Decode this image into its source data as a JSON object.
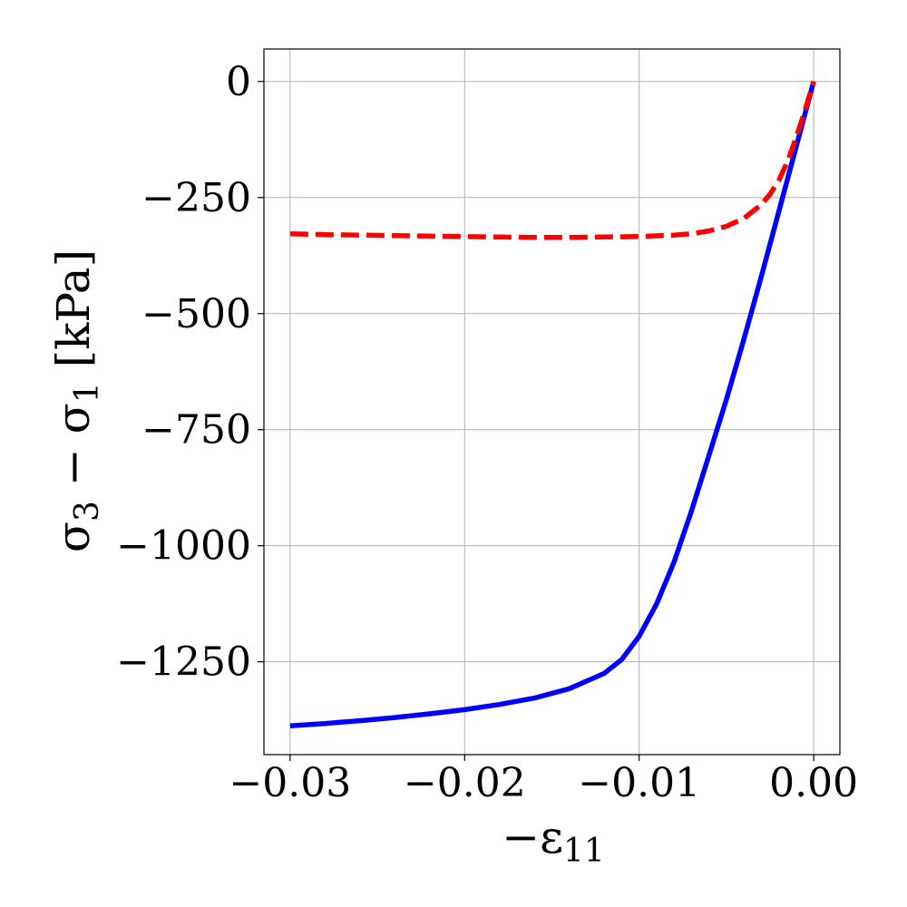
{
  "chart_data": {
    "type": "line",
    "title": "",
    "xlabel": "−ε",
    "xlabel_sub": "11",
    "ylabel_parts": [
      "σ",
      "3",
      " − σ",
      "1",
      " [kPa]"
    ],
    "xlim": [
      -0.0315,
      0.0015
    ],
    "ylim": [
      -1450,
      70
    ],
    "xticks": [
      -0.03,
      -0.02,
      -0.01,
      0.0
    ],
    "xtick_labels": [
      "−0.03",
      "−0.02",
      "−0.01",
      "0.00"
    ],
    "yticks": [
      0,
      -250,
      -500,
      -750,
      -1000,
      -1250
    ],
    "ytick_labels": [
      "0",
      "−250",
      "−500",
      "−750",
      "−1000",
      "−1250"
    ],
    "grid": true,
    "legend": "none",
    "series": [
      {
        "color": "#0000ff",
        "style": "solid",
        "x": [
          -0.03,
          -0.028,
          -0.026,
          -0.024,
          -0.022,
          -0.02,
          -0.018,
          -0.016,
          -0.014,
          -0.012,
          -0.011,
          -0.01,
          -0.009,
          -0.008,
          -0.007,
          -0.006,
          -0.005,
          -0.004,
          -0.003,
          -0.002,
          -0.001,
          0.0
        ],
        "y": [
          -1388,
          -1383,
          -1377,
          -1370,
          -1362,
          -1353,
          -1342,
          -1328,
          -1308,
          -1275,
          -1245,
          -1195,
          -1125,
          -1035,
          -925,
          -805,
          -685,
          -555,
          -420,
          -280,
          -140,
          0
        ]
      },
      {
        "color": "#ff0000",
        "style": "dashed",
        "x": [
          -0.03,
          -0.028,
          -0.026,
          -0.024,
          -0.022,
          -0.02,
          -0.018,
          -0.016,
          -0.014,
          -0.012,
          -0.01,
          -0.008,
          -0.007,
          -0.006,
          -0.005,
          -0.004,
          -0.003,
          -0.0025,
          -0.002,
          -0.0015,
          -0.001,
          -0.0005,
          0.0
        ],
        "y": [
          -328,
          -330,
          -331,
          -332,
          -333,
          -334,
          -335,
          -336,
          -336,
          -335,
          -334,
          -331,
          -328,
          -322,
          -312,
          -295,
          -265,
          -243,
          -213,
          -172,
          -120,
          -62,
          0
        ]
      }
    ]
  }
}
